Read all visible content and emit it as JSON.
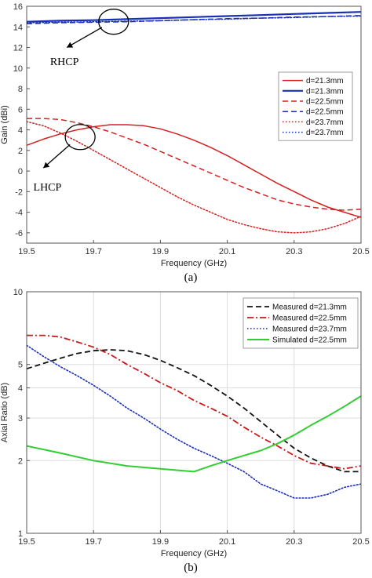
{
  "chart_data": [
    {
      "type": "line",
      "caption": "(a)",
      "xlabel": "Frequency (GHz)",
      "ylabel": "Gain (dBi)",
      "xlim": [
        19.5,
        20.5
      ],
      "ylim": [
        -7,
        16
      ],
      "xticks": [
        19.5,
        19.7,
        19.9,
        20.1,
        20.3,
        20.5
      ],
      "xtick_labels": [
        "19.5",
        "19.7",
        "19.9",
        "20.1",
        "20.3",
        "20.5"
      ],
      "yticks": [
        -6,
        -4,
        -2,
        0,
        2,
        4,
        6,
        8,
        10,
        12,
        14,
        16
      ],
      "ytick_labels": [
        "-6",
        "-4",
        "-2",
        "0",
        "2",
        "4",
        "6",
        "8",
        "10",
        "12",
        "14",
        "16"
      ],
      "grid": false,
      "legend_position": "right",
      "annotations": [
        {
          "text": "RHCP",
          "ellipse_center": [
            19.76,
            14.5
          ],
          "arrow_to": [
            19.62,
            12.0
          ],
          "label_at": [
            19.57,
            10.3
          ]
        },
        {
          "text": "LHCP",
          "ellipse_center": [
            19.66,
            3.3
          ],
          "arrow_to": [
            19.55,
            0.3
          ],
          "label_at": [
            19.52,
            -1.9
          ]
        }
      ],
      "series": [
        {
          "name": "d=21.3mm",
          "color": "#d42020",
          "dash": "solid",
          "width": 1.5,
          "x": [
            19.5,
            19.55,
            19.6,
            19.65,
            19.7,
            19.75,
            19.8,
            19.85,
            19.9,
            19.95,
            20.0,
            20.05,
            20.1,
            20.15,
            20.2,
            20.25,
            20.3,
            20.35,
            20.4,
            20.45,
            20.5
          ],
          "y": [
            2.5,
            3.1,
            3.6,
            4.0,
            4.3,
            4.5,
            4.5,
            4.4,
            4.1,
            3.6,
            3.0,
            2.3,
            1.5,
            0.6,
            -0.3,
            -1.2,
            -2.0,
            -2.8,
            -3.5,
            -4.0,
            -4.5
          ]
        },
        {
          "name": "d=21.3mm",
          "color": "#1a2fb8",
          "dash": "solid",
          "width": 2.2,
          "x": [
            19.5,
            19.6,
            19.7,
            19.8,
            19.9,
            20.0,
            20.1,
            20.2,
            20.3,
            20.4,
            20.5
          ],
          "y": [
            14.5,
            14.6,
            14.65,
            14.75,
            14.85,
            14.95,
            15.05,
            15.15,
            15.25,
            15.35,
            15.45
          ]
        },
        {
          "name": "d=22.5mm",
          "color": "#d42020",
          "dash": "dashed",
          "width": 1.5,
          "x": [
            19.5,
            19.55,
            19.6,
            19.65,
            19.7,
            19.75,
            19.8,
            19.85,
            19.9,
            19.95,
            20.0,
            20.05,
            20.1,
            20.15,
            20.2,
            20.25,
            20.3,
            20.35,
            20.4,
            20.45,
            20.5
          ],
          "y": [
            5.1,
            5.1,
            5.0,
            4.7,
            4.3,
            3.8,
            3.2,
            2.6,
            1.9,
            1.2,
            0.5,
            -0.2,
            -0.9,
            -1.6,
            -2.2,
            -2.8,
            -3.2,
            -3.5,
            -3.7,
            -3.8,
            -3.7
          ]
        },
        {
          "name": "d=22.5mm",
          "color": "#1a2fb8",
          "dash": "dashed",
          "width": 1.5,
          "x": [
            19.5,
            19.6,
            19.7,
            19.8,
            19.9,
            20.0,
            20.1,
            20.2,
            20.3,
            20.4,
            20.5
          ],
          "y": [
            14.3,
            14.4,
            14.45,
            14.5,
            14.6,
            14.7,
            14.8,
            14.85,
            14.95,
            15.0,
            15.1
          ]
        },
        {
          "name": "d=23.7mm",
          "color": "#d42020",
          "dash": "dotted",
          "width": 1.5,
          "x": [
            19.5,
            19.55,
            19.6,
            19.65,
            19.7,
            19.75,
            19.8,
            19.85,
            19.9,
            19.95,
            20.0,
            20.05,
            20.1,
            20.15,
            20.2,
            20.25,
            20.3,
            20.35,
            20.4,
            20.45,
            20.5
          ],
          "y": [
            4.8,
            4.4,
            3.7,
            2.9,
            2.0,
            1.1,
            0.2,
            -0.7,
            -1.6,
            -2.5,
            -3.3,
            -4.0,
            -4.7,
            -5.2,
            -5.6,
            -5.9,
            -6.0,
            -5.9,
            -5.6,
            -5.1,
            -4.4
          ]
        },
        {
          "name": "d=23.7mm",
          "color": "#1a2fb8",
          "dash": "dotted",
          "width": 1.5,
          "x": [
            19.5,
            19.6,
            19.7,
            19.8,
            19.9,
            20.0,
            20.1,
            20.2,
            20.3,
            20.4,
            20.5
          ],
          "y": [
            14.4,
            14.45,
            14.5,
            14.55,
            14.6,
            14.7,
            14.75,
            14.85,
            14.9,
            15.0,
            15.05
          ]
        }
      ]
    },
    {
      "type": "line",
      "caption": "(b)",
      "xlabel": "Frequency (GHz)",
      "ylabel": "Axial Ratio (dB)",
      "xlim": [
        19.5,
        20.5
      ],
      "ylim": [
        1,
        10
      ],
      "yscale": "log",
      "xticks": [
        19.5,
        19.7,
        19.9,
        20.1,
        20.3,
        20.5
      ],
      "xtick_labels": [
        "19.5",
        "19.7",
        "19.9",
        "20.1",
        "20.3",
        "20.5"
      ],
      "yticks": [
        1,
        2,
        3,
        4,
        5,
        10
      ],
      "ytick_labels": [
        "1",
        "2",
        "3",
        "4",
        "5",
        "10"
      ],
      "grid": true,
      "legend_position": "top-right",
      "series": [
        {
          "name": "Measured d=21.3mm",
          "color": "#111111",
          "dash": "dashed",
          "width": 1.8,
          "x": [
            19.5,
            19.55,
            19.6,
            19.65,
            19.7,
            19.75,
            19.8,
            19.85,
            19.9,
            19.95,
            20.0,
            20.05,
            20.1,
            20.15,
            20.2,
            20.25,
            20.3,
            20.35,
            20.4,
            20.45,
            20.5
          ],
          "y": [
            4.8,
            5.05,
            5.3,
            5.55,
            5.7,
            5.75,
            5.7,
            5.5,
            5.2,
            4.85,
            4.5,
            4.1,
            3.7,
            3.3,
            2.9,
            2.55,
            2.25,
            2.05,
            1.9,
            1.8,
            1.8
          ]
        },
        {
          "name": "Measured d=22.5mm",
          "color": "#c41a1a",
          "dash": "dashdot",
          "width": 1.8,
          "x": [
            19.5,
            19.55,
            19.6,
            19.65,
            19.7,
            19.75,
            19.8,
            19.85,
            19.9,
            19.95,
            20.0,
            20.05,
            20.1,
            20.15,
            20.2,
            20.25,
            20.3,
            20.35,
            20.4,
            20.45,
            20.5
          ],
          "y": [
            6.6,
            6.6,
            6.5,
            6.2,
            5.9,
            5.5,
            5.0,
            4.6,
            4.2,
            3.9,
            3.55,
            3.3,
            3.05,
            2.75,
            2.5,
            2.3,
            2.1,
            1.95,
            1.9,
            1.85,
            1.9
          ]
        },
        {
          "name": "Measured d=23.7mm",
          "color": "#1a2fb8",
          "dash": "dotted",
          "width": 1.6,
          "x": [
            19.5,
            19.55,
            19.6,
            19.65,
            19.7,
            19.75,
            19.8,
            19.85,
            19.9,
            19.95,
            20.0,
            20.05,
            20.1,
            20.15,
            20.2,
            20.25,
            20.3,
            20.35,
            20.4,
            20.45,
            20.5
          ],
          "y": [
            6.0,
            5.4,
            4.9,
            4.5,
            4.1,
            3.7,
            3.3,
            3.0,
            2.7,
            2.45,
            2.25,
            2.1,
            1.95,
            1.8,
            1.6,
            1.5,
            1.4,
            1.4,
            1.45,
            1.55,
            1.6
          ]
        },
        {
          "name": "Simulated d=22.5mm",
          "color": "#33cc33",
          "dash": "solid",
          "width": 2,
          "x": [
            19.5,
            19.6,
            19.7,
            19.8,
            19.9,
            20.0,
            20.05,
            20.1,
            20.15,
            20.2,
            20.25,
            20.3,
            20.35,
            20.4,
            20.45,
            20.5
          ],
          "y": [
            2.3,
            2.15,
            2.0,
            1.9,
            1.85,
            1.8,
            1.9,
            2.0,
            2.1,
            2.2,
            2.35,
            2.55,
            2.8,
            3.05,
            3.35,
            3.7
          ]
        }
      ]
    }
  ]
}
